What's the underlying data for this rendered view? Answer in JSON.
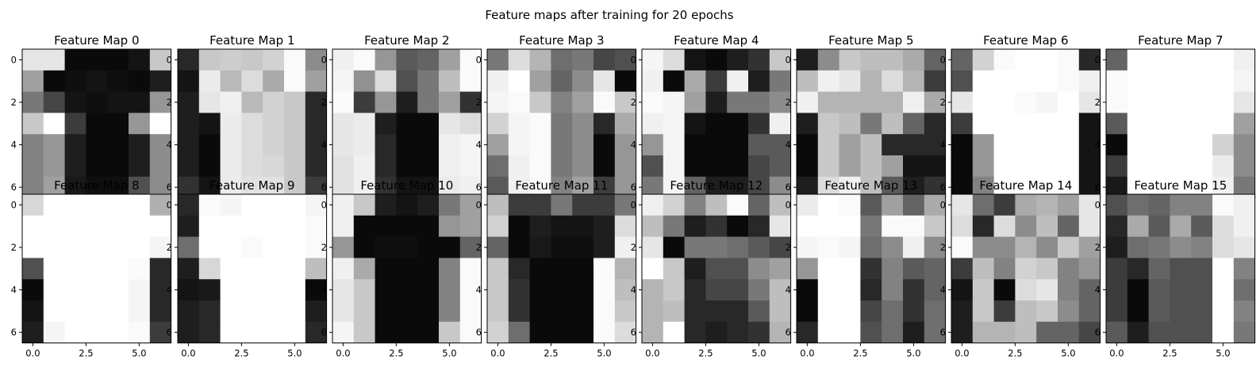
{
  "figure_title": "Feature maps after training for 20 epochs",
  "chart_data": {
    "type": "heatmap",
    "colormap": "gray",
    "grid": false,
    "layout": {
      "rows": 2,
      "cols": 8
    },
    "x_ticks": [
      "0.0",
      "2.5",
      "5.0"
    ],
    "x_tick_values": [
      0,
      2.5,
      5
    ],
    "y_ticks": [
      "0",
      "2",
      "4",
      "6"
    ],
    "y_tick_values": [
      0,
      2,
      4,
      6
    ],
    "xlim": [
      -0.5,
      6.5
    ],
    "ylim": [
      6.5,
      -0.5
    ],
    "value_range": [
      0,
      255
    ],
    "maps": [
      {
        "title": "Feature Map 0",
        "values": [
          [
            230,
            230,
            10,
            10,
            10,
            20,
            200
          ],
          [
            160,
            10,
            15,
            20,
            15,
            10,
            30
          ],
          [
            120,
            70,
            20,
            15,
            20,
            20,
            150
          ],
          [
            200,
            255,
            60,
            10,
            10,
            150,
            255
          ],
          [
            130,
            150,
            30,
            10,
            10,
            30,
            140
          ],
          [
            130,
            150,
            30,
            10,
            10,
            30,
            140
          ],
          [
            130,
            160,
            25,
            15,
            15,
            80,
            140
          ]
        ]
      },
      {
        "title": "Feature Map 1",
        "values": [
          [
            40,
            200,
            205,
            200,
            210,
            250,
            140
          ],
          [
            20,
            235,
            185,
            220,
            170,
            250,
            160
          ],
          [
            30,
            230,
            240,
            185,
            210,
            200,
            40
          ],
          [
            30,
            20,
            235,
            220,
            210,
            200,
            40
          ],
          [
            30,
            10,
            235,
            220,
            210,
            200,
            40
          ],
          [
            30,
            10,
            235,
            220,
            215,
            200,
            40
          ],
          [
            50,
            20,
            235,
            225,
            225,
            200,
            60
          ]
        ]
      },
      {
        "title": "Feature Map 2",
        "values": [
          [
            240,
            250,
            150,
            90,
            100,
            160,
            250
          ],
          [
            245,
            145,
            220,
            80,
            120,
            190,
            250
          ],
          [
            250,
            60,
            150,
            30,
            120,
            160,
            50
          ],
          [
            230,
            235,
            30,
            10,
            10,
            230,
            220
          ],
          [
            230,
            235,
            40,
            10,
            10,
            240,
            245
          ],
          [
            225,
            240,
            40,
            10,
            10,
            240,
            245
          ],
          [
            225,
            240,
            50,
            20,
            20,
            235,
            240
          ]
        ]
      },
      {
        "title": "Feature Map 3",
        "values": [
          [
            120,
            220,
            180,
            110,
            120,
            70,
            80
          ],
          [
            240,
            255,
            160,
            100,
            140,
            230,
            10
          ],
          [
            245,
            250,
            200,
            130,
            160,
            250,
            200
          ],
          [
            210,
            245,
            250,
            120,
            140,
            40,
            170
          ],
          [
            160,
            245,
            250,
            120,
            140,
            10,
            150
          ],
          [
            110,
            240,
            250,
            120,
            140,
            10,
            150
          ],
          [
            90,
            240,
            250,
            130,
            160,
            60,
            150
          ]
        ]
      },
      {
        "title": "Feature Map 4",
        "values": [
          [
            245,
            220,
            20,
            10,
            30,
            50,
            200
          ],
          [
            240,
            10,
            170,
            60,
            240,
            30,
            120
          ],
          [
            250,
            245,
            160,
            30,
            120,
            120,
            140
          ],
          [
            240,
            245,
            20,
            10,
            10,
            50,
            240
          ],
          [
            150,
            245,
            10,
            10,
            10,
            90,
            90
          ],
          [
            80,
            245,
            10,
            10,
            10,
            70,
            90
          ],
          [
            120,
            245,
            100,
            30,
            30,
            70,
            140
          ]
        ]
      },
      {
        "title": "Feature Map 5",
        "values": [
          [
            30,
            140,
            200,
            190,
            190,
            170,
            100
          ],
          [
            190,
            240,
            230,
            180,
            220,
            180,
            60
          ],
          [
            240,
            180,
            180,
            180,
            180,
            240,
            170
          ],
          [
            30,
            200,
            190,
            120,
            190,
            100,
            40
          ],
          [
            10,
            200,
            160,
            190,
            40,
            40,
            40
          ],
          [
            10,
            200,
            160,
            190,
            160,
            20,
            20
          ],
          [
            30,
            220,
            240,
            190,
            90,
            30,
            50
          ]
        ]
      },
      {
        "title": "Feature Map 6",
        "values": [
          [
            100,
            210,
            250,
            255,
            255,
            250,
            40
          ],
          [
            80,
            255,
            255,
            255,
            255,
            250,
            240
          ],
          [
            230,
            255,
            255,
            250,
            245,
            255,
            230
          ],
          [
            60,
            255,
            255,
            255,
            255,
            255,
            20
          ],
          [
            10,
            150,
            255,
            255,
            255,
            255,
            20
          ],
          [
            10,
            150,
            255,
            255,
            255,
            255,
            20
          ],
          [
            10,
            130,
            255,
            255,
            255,
            255,
            20
          ]
        ]
      },
      {
        "title": "Feature Map 7",
        "values": [
          [
            100,
            255,
            255,
            255,
            255,
            255,
            240
          ],
          [
            250,
            255,
            255,
            255,
            255,
            255,
            245
          ],
          [
            250,
            255,
            255,
            255,
            255,
            255,
            230
          ],
          [
            90,
            255,
            255,
            255,
            255,
            255,
            160
          ],
          [
            10,
            255,
            255,
            255,
            255,
            210,
            140
          ],
          [
            60,
            255,
            255,
            255,
            255,
            235,
            140
          ],
          [
            25,
            255,
            255,
            255,
            255,
            240,
            120
          ]
        ]
      },
      {
        "title": "Feature Map 8",
        "values": [
          [
            215,
            255,
            255,
            255,
            255,
            255,
            175
          ],
          [
            255,
            255,
            255,
            255,
            255,
            255,
            255
          ],
          [
            255,
            255,
            255,
            255,
            255,
            255,
            245
          ],
          [
            80,
            255,
            255,
            255,
            255,
            250,
            40
          ],
          [
            10,
            255,
            255,
            255,
            255,
            245,
            40
          ],
          [
            20,
            255,
            255,
            255,
            255,
            245,
            40
          ],
          [
            30,
            245,
            255,
            255,
            255,
            250,
            60
          ]
        ]
      },
      {
        "title": "Feature Map 9",
        "values": [
          [
            40,
            250,
            245,
            255,
            255,
            255,
            245
          ],
          [
            30,
            255,
            255,
            255,
            255,
            255,
            250
          ],
          [
            110,
            255,
            255,
            250,
            255,
            255,
            250
          ],
          [
            30,
            215,
            255,
            255,
            255,
            255,
            190
          ],
          [
            20,
            25,
            255,
            255,
            255,
            255,
            10
          ],
          [
            30,
            40,
            255,
            255,
            255,
            255,
            30
          ],
          [
            30,
            40,
            255,
            255,
            255,
            255,
            40
          ]
        ]
      },
      {
        "title": "Feature Map 10",
        "values": [
          [
            240,
            200,
            30,
            20,
            30,
            120,
            160
          ],
          [
            240,
            10,
            10,
            10,
            10,
            150,
            160
          ],
          [
            150,
            10,
            15,
            15,
            10,
            10,
            100
          ],
          [
            240,
            170,
            10,
            10,
            10,
            130,
            250
          ],
          [
            230,
            200,
            10,
            10,
            10,
            130,
            250
          ],
          [
            230,
            200,
            10,
            10,
            10,
            130,
            250
          ],
          [
            245,
            200,
            10,
            10,
            10,
            200,
            250
          ]
        ]
      },
      {
        "title": "Feature Map 11",
        "values": [
          [
            190,
            60,
            60,
            120,
            60,
            60,
            120
          ],
          [
            210,
            10,
            30,
            20,
            20,
            30,
            220
          ],
          [
            100,
            10,
            25,
            15,
            15,
            30,
            240
          ],
          [
            200,
            40,
            10,
            10,
            10,
            250,
            180
          ],
          [
            200,
            50,
            10,
            10,
            10,
            250,
            190
          ],
          [
            200,
            50,
            10,
            10,
            10,
            250,
            200
          ],
          [
            210,
            110,
            10,
            10,
            10,
            250,
            220
          ]
        ]
      },
      {
        "title": "Feature Map 12",
        "values": [
          [
            240,
            210,
            130,
            190,
            250,
            100,
            190
          ],
          [
            190,
            120,
            30,
            50,
            10,
            40,
            230
          ],
          [
            230,
            10,
            120,
            120,
            110,
            90,
            70
          ],
          [
            255,
            200,
            30,
            80,
            80,
            140,
            160
          ],
          [
            180,
            200,
            40,
            70,
            70,
            120,
            190
          ],
          [
            180,
            190,
            40,
            40,
            40,
            90,
            190
          ],
          [
            180,
            255,
            40,
            30,
            40,
            50,
            180
          ]
        ]
      },
      {
        "title": "Feature Map 13",
        "values": [
          [
            235,
            255,
            250,
            90,
            160,
            100,
            170
          ],
          [
            255,
            255,
            255,
            120,
            250,
            250,
            200
          ],
          [
            245,
            250,
            245,
            110,
            140,
            240,
            140
          ],
          [
            150,
            255,
            255,
            50,
            130,
            90,
            100
          ],
          [
            10,
            255,
            255,
            40,
            130,
            50,
            100
          ],
          [
            10,
            255,
            255,
            70,
            110,
            50,
            110
          ],
          [
            40,
            255,
            255,
            80,
            110,
            30,
            110
          ]
        ]
      },
      {
        "title": "Feature Map 14",
        "values": [
          [
            230,
            110,
            60,
            170,
            180,
            160,
            230
          ],
          [
            220,
            40,
            220,
            140,
            190,
            100,
            230
          ],
          [
            250,
            140,
            140,
            180,
            140,
            200,
            160
          ],
          [
            60,
            190,
            130,
            210,
            200,
            130,
            150
          ],
          [
            20,
            200,
            10,
            220,
            230,
            130,
            100
          ],
          [
            30,
            200,
            60,
            190,
            200,
            140,
            100
          ],
          [
            30,
            180,
            180,
            190,
            100,
            100,
            70
          ]
        ]
      },
      {
        "title": "Feature Map 15",
        "values": [
          [
            80,
            110,
            100,
            130,
            130,
            250,
            240
          ],
          [
            40,
            170,
            90,
            170,
            90,
            220,
            240
          ],
          [
            30,
            110,
            120,
            140,
            130,
            220,
            230
          ],
          [
            60,
            40,
            100,
            80,
            80,
            255,
            130
          ],
          [
            60,
            10,
            90,
            80,
            80,
            255,
            110
          ],
          [
            60,
            10,
            90,
            80,
            80,
            255,
            130
          ],
          [
            90,
            30,
            80,
            80,
            80,
            255,
            120
          ]
        ]
      }
    ]
  }
}
